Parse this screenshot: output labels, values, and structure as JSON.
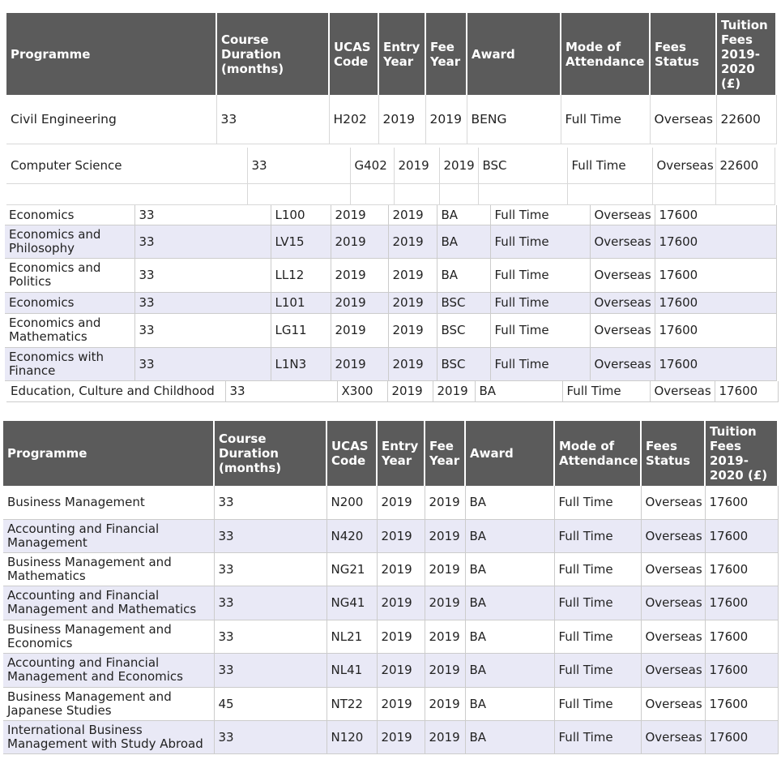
{
  "headers": [
    "Programme",
    "Course Duration (months)",
    "UCAS Code",
    "Entry Year",
    "Fee Year",
    "Award",
    "Mode of Attendance",
    "Fees Status",
    "Tuition Fees 2019-2020 (£)"
  ],
  "top_rows": [
    [
      "Civil Engineering",
      "33",
      "H202",
      "2019",
      "2019",
      "BENG",
      "Full Time",
      "Overseas",
      "22600"
    ]
  ],
  "cs_row": [
    "Computer Science",
    "33",
    "G402",
    "2019",
    "2019",
    "BSC",
    "Full Time",
    "Overseas",
    "22600"
  ],
  "econ_rows": [
    [
      "Economics",
      "33",
      "L100",
      "2019",
      "2019",
      "BA",
      "Full Time",
      "Overseas",
      "17600"
    ],
    [
      "Economics and Philosophy",
      "33",
      "LV15",
      "2019",
      "2019",
      "BA",
      "Full Time",
      "Overseas",
      "17600"
    ],
    [
      "Economics and Politics",
      "33",
      "LL12",
      "2019",
      "2019",
      "BA",
      "Full Time",
      "Overseas",
      "17600"
    ],
    [
      "Economics",
      "33",
      "L101",
      "2019",
      "2019",
      "BSC",
      "Full Time",
      "Overseas",
      "17600"
    ],
    [
      "Economics and Mathematics",
      "33",
      "LG11",
      "2019",
      "2019",
      "BSC",
      "Full Time",
      "Overseas",
      "17600"
    ],
    [
      "Economics with Finance",
      "33",
      "L1N3",
      "2019",
      "2019",
      "BSC",
      "Full Time",
      "Overseas",
      "17600"
    ]
  ],
  "edu_row": [
    "Education, Culture and Childhood",
    "33",
    "X300",
    "2019",
    "2019",
    "BA",
    "Full Time",
    "Overseas",
    "17600"
  ],
  "business_rows": [
    [
      "Business Management",
      "33",
      "N200",
      "2019",
      "2019",
      "BA",
      "Full Time",
      "Overseas",
      "17600"
    ],
    [
      "Accounting and Financial Management",
      "33",
      "N420",
      "2019",
      "2019",
      "BA",
      "Full Time",
      "Overseas",
      "17600"
    ],
    [
      "Business Management and Mathematics",
      "33",
      "NG21",
      "2019",
      "2019",
      "BA",
      "Full Time",
      "Overseas",
      "17600"
    ],
    [
      "Accounting and Financial Management and Mathematics",
      "33",
      "NG41",
      "2019",
      "2019",
      "BA",
      "Full Time",
      "Overseas",
      "17600"
    ],
    [
      "Business Management and Economics",
      "33",
      "NL21",
      "2019",
      "2019",
      "BA",
      "Full Time",
      "Overseas",
      "17600"
    ],
    [
      "Accounting and Financial Management and Economics",
      "33",
      "NL41",
      "2019",
      "2019",
      "BA",
      "Full Time",
      "Overseas",
      "17600"
    ],
    [
      "Business Management and Japanese Studies",
      "45",
      "NT22",
      "2019",
      "2019",
      "BA",
      "Full Time",
      "Overseas",
      "17600"
    ],
    [
      "International Business Management with Study Abroad",
      "33",
      "N120",
      "2019",
      "2019",
      "BA",
      "Full Time",
      "Overseas",
      "17600"
    ]
  ]
}
